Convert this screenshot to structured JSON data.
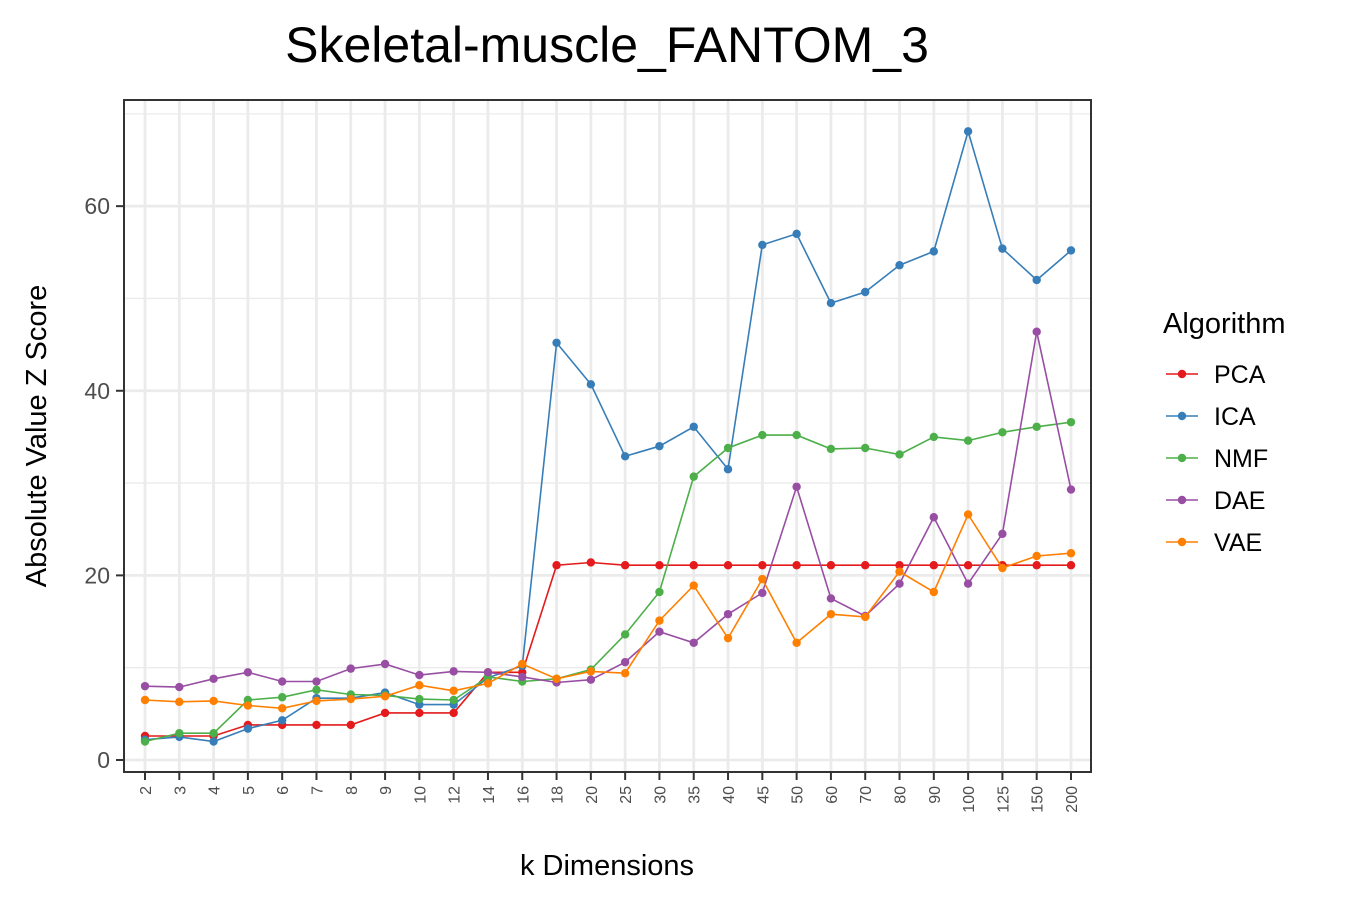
{
  "chart_data": {
    "type": "line",
    "title": "Skeletal-muscle_FANTOM_3",
    "xlabel": "k Dimensions",
    "ylabel": "Absolute Value Z Score",
    "ylim": [
      -1.3,
      71.5
    ],
    "yticks": [
      0,
      20,
      40,
      60
    ],
    "grid": true,
    "legend_title": "Algorithm",
    "legend_position": "right",
    "categories": [
      "2",
      "3",
      "4",
      "5",
      "6",
      "7",
      "8",
      "9",
      "10",
      "12",
      "14",
      "16",
      "18",
      "20",
      "25",
      "30",
      "35",
      "40",
      "45",
      "50",
      "60",
      "70",
      "80",
      "90",
      "100",
      "125",
      "150",
      "200"
    ],
    "series": [
      {
        "name": "PCA",
        "color": "#E41A1C",
        "values": [
          2.6,
          2.6,
          2.6,
          3.8,
          3.8,
          3.8,
          3.8,
          5.1,
          5.1,
          5.1,
          9.5,
          9.5,
          21.1,
          21.4,
          21.1,
          21.1,
          21.1,
          21.1,
          21.1,
          21.1,
          21.1,
          21.1,
          21.1,
          21.1,
          21.1,
          21.1,
          21.1,
          21.1
        ]
      },
      {
        "name": "ICA",
        "color": "#377EB8",
        "values": [
          2.2,
          2.5,
          2.0,
          3.4,
          4.3,
          6.7,
          6.7,
          7.3,
          6.0,
          6.0,
          8.9,
          10.2,
          45.2,
          40.7,
          32.9,
          34.0,
          36.1,
          31.5,
          55.8,
          57.0,
          49.5,
          50.7,
          53.6,
          55.1,
          68.1,
          55.4,
          52.0,
          55.2
        ]
      },
      {
        "name": "NMF",
        "color": "#4DAF4A",
        "values": [
          2.0,
          2.9,
          2.9,
          6.5,
          6.8,
          7.6,
          7.1,
          7.0,
          6.6,
          6.5,
          9.0,
          8.5,
          8.8,
          9.8,
          13.6,
          18.2,
          30.7,
          33.8,
          35.2,
          35.2,
          33.7,
          33.8,
          33.1,
          35.0,
          34.6,
          35.5,
          36.1,
          36.6
        ]
      },
      {
        "name": "DAE",
        "color": "#984EA3",
        "values": [
          8.0,
          7.9,
          8.8,
          9.5,
          8.5,
          8.5,
          9.9,
          10.4,
          9.2,
          9.6,
          9.5,
          9.0,
          8.4,
          8.7,
          10.6,
          13.9,
          12.7,
          15.8,
          18.1,
          29.6,
          17.5,
          15.6,
          19.1,
          26.3,
          19.1,
          24.5,
          46.4,
          29.3
        ]
      },
      {
        "name": "VAE",
        "color": "#FF7F00",
        "values": [
          6.5,
          6.3,
          6.4,
          5.9,
          5.6,
          6.4,
          6.6,
          6.9,
          8.1,
          7.5,
          8.3,
          10.4,
          8.8,
          9.6,
          9.4,
          15.1,
          18.9,
          13.2,
          19.6,
          12.7,
          15.8,
          15.5,
          20.4,
          18.2,
          26.6,
          20.8,
          22.1,
          22.4
        ]
      }
    ]
  }
}
